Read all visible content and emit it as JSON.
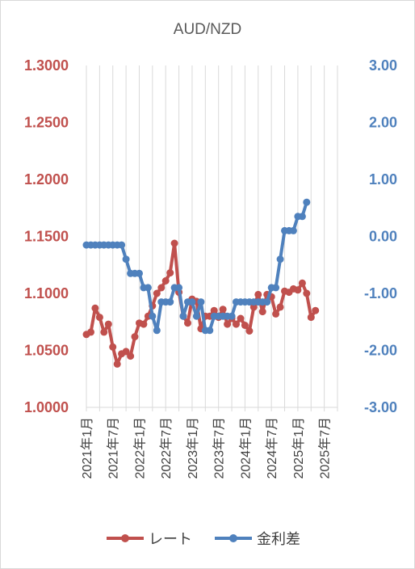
{
  "chart_data": {
    "type": "line",
    "title": "AUD/NZD",
    "x_ticks": [
      "2021年1月",
      "2021年7月",
      "2022年1月",
      "2022年7月",
      "2023年1月",
      "2023年7月",
      "2024年1月",
      "2024年7月",
      "2025年1月",
      "2025年7月"
    ],
    "y_left": {
      "min": 1.0,
      "max": 1.3,
      "step": 0.05,
      "ticks": [
        "1.0000",
        "1.0500",
        "1.1000",
        "1.1500",
        "1.2000",
        "1.2500",
        "1.3000"
      ],
      "color": "#c0504d"
    },
    "y_right": {
      "min": -3,
      "max": 3,
      "step": 1,
      "ticks": [
        "-3.00",
        "-2.00",
        "-1.00",
        "0.00",
        "1.00",
        "2.00",
        "3.00"
      ],
      "color": "#4f81bd"
    },
    "grid": "vertical",
    "legend_position": "bottom",
    "series": [
      {
        "name": "レート",
        "axis": "left",
        "color": "#c0504d",
        "points": [
          [
            "2021-01",
            1.064
          ],
          [
            "2021-02",
            1.066
          ],
          [
            "2021-03",
            1.087
          ],
          [
            "2021-04",
            1.079
          ],
          [
            "2021-05",
            1.066
          ],
          [
            "2021-06",
            1.073
          ],
          [
            "2021-07",
            1.053
          ],
          [
            "2021-08",
            1.038
          ],
          [
            "2021-09",
            1.047
          ],
          [
            "2021-10",
            1.049
          ],
          [
            "2021-11",
            1.045
          ],
          [
            "2021-12",
            1.062
          ],
          [
            "2022-01",
            1.074
          ],
          [
            "2022-02",
            1.073
          ],
          [
            "2022-03",
            1.08
          ],
          [
            "2022-04",
            1.089
          ],
          [
            "2022-05",
            1.1
          ],
          [
            "2022-06",
            1.105
          ],
          [
            "2022-07",
            1.111
          ],
          [
            "2022-08",
            1.118
          ],
          [
            "2022-09",
            1.144
          ],
          [
            "2022-10",
            1.101
          ],
          [
            "2022-11",
            1.08
          ],
          [
            "2022-12",
            1.074
          ],
          [
            "2023-01",
            1.095
          ],
          [
            "2023-02",
            1.093
          ],
          [
            "2023-03",
            1.069
          ],
          [
            "2023-04",
            1.08
          ],
          [
            "2023-05",
            1.08
          ],
          [
            "2023-06",
            1.085
          ],
          [
            "2023-07",
            1.079
          ],
          [
            "2023-08",
            1.086
          ],
          [
            "2023-09",
            1.073
          ],
          [
            "2023-10",
            1.078
          ],
          [
            "2023-11",
            1.073
          ],
          [
            "2023-12",
            1.078
          ],
          [
            "2024-01",
            1.072
          ],
          [
            "2024-02",
            1.067
          ],
          [
            "2024-03",
            1.088
          ],
          [
            "2024-04",
            1.099
          ],
          [
            "2024-05",
            1.084
          ],
          [
            "2024-06",
            1.099
          ],
          [
            "2024-07",
            1.097
          ],
          [
            "2024-08",
            1.082
          ],
          [
            "2024-09",
            1.088
          ],
          [
            "2024-10",
            1.102
          ],
          [
            "2024-11",
            1.101
          ],
          [
            "2024-12",
            1.104
          ],
          [
            "2025-01",
            1.103
          ],
          [
            "2025-02",
            1.109
          ],
          [
            "2025-03",
            1.1
          ],
          [
            "2025-04",
            1.079
          ],
          [
            "2025-05",
            1.085
          ]
        ]
      },
      {
        "name": "金利差",
        "axis": "right",
        "color": "#4f81bd",
        "points": [
          [
            "2021-01",
            -0.15
          ],
          [
            "2021-02",
            -0.15
          ],
          [
            "2021-03",
            -0.15
          ],
          [
            "2021-04",
            -0.15
          ],
          [
            "2021-05",
            -0.15
          ],
          [
            "2021-06",
            -0.15
          ],
          [
            "2021-07",
            -0.15
          ],
          [
            "2021-08",
            -0.15
          ],
          [
            "2021-09",
            -0.15
          ],
          [
            "2021-10",
            -0.4
          ],
          [
            "2021-11",
            -0.65
          ],
          [
            "2021-12",
            -0.65
          ],
          [
            "2022-01",
            -0.65
          ],
          [
            "2022-02",
            -0.9
          ],
          [
            "2022-03",
            -0.9
          ],
          [
            "2022-04",
            -1.4
          ],
          [
            "2022-05",
            -1.65
          ],
          [
            "2022-06",
            -1.15
          ],
          [
            "2022-07",
            -1.15
          ],
          [
            "2022-08",
            -1.15
          ],
          [
            "2022-09",
            -0.9
          ],
          [
            "2022-10",
            -0.9
          ],
          [
            "2022-11",
            -1.4
          ],
          [
            "2022-12",
            -1.15
          ],
          [
            "2023-01",
            -1.15
          ],
          [
            "2023-02",
            -1.4
          ],
          [
            "2023-03",
            -1.15
          ],
          [
            "2023-04",
            -1.65
          ],
          [
            "2023-05",
            -1.65
          ],
          [
            "2023-06",
            -1.4
          ],
          [
            "2023-07",
            -1.4
          ],
          [
            "2023-08",
            -1.4
          ],
          [
            "2023-09",
            -1.4
          ],
          [
            "2023-10",
            -1.4
          ],
          [
            "2023-11",
            -1.15
          ],
          [
            "2023-12",
            -1.15
          ],
          [
            "2024-01",
            -1.15
          ],
          [
            "2024-02",
            -1.15
          ],
          [
            "2024-03",
            -1.15
          ],
          [
            "2024-04",
            -1.15
          ],
          [
            "2024-05",
            -1.15
          ],
          [
            "2024-06",
            -1.15
          ],
          [
            "2024-07",
            -0.9
          ],
          [
            "2024-08",
            -0.9
          ],
          [
            "2024-09",
            -0.4
          ],
          [
            "2024-10",
            0.1
          ],
          [
            "2024-11",
            0.1
          ],
          [
            "2024-12",
            0.1
          ],
          [
            "2025-01",
            0.35
          ],
          [
            "2025-02",
            0.35
          ],
          [
            "2025-03",
            0.6
          ]
        ]
      }
    ]
  }
}
